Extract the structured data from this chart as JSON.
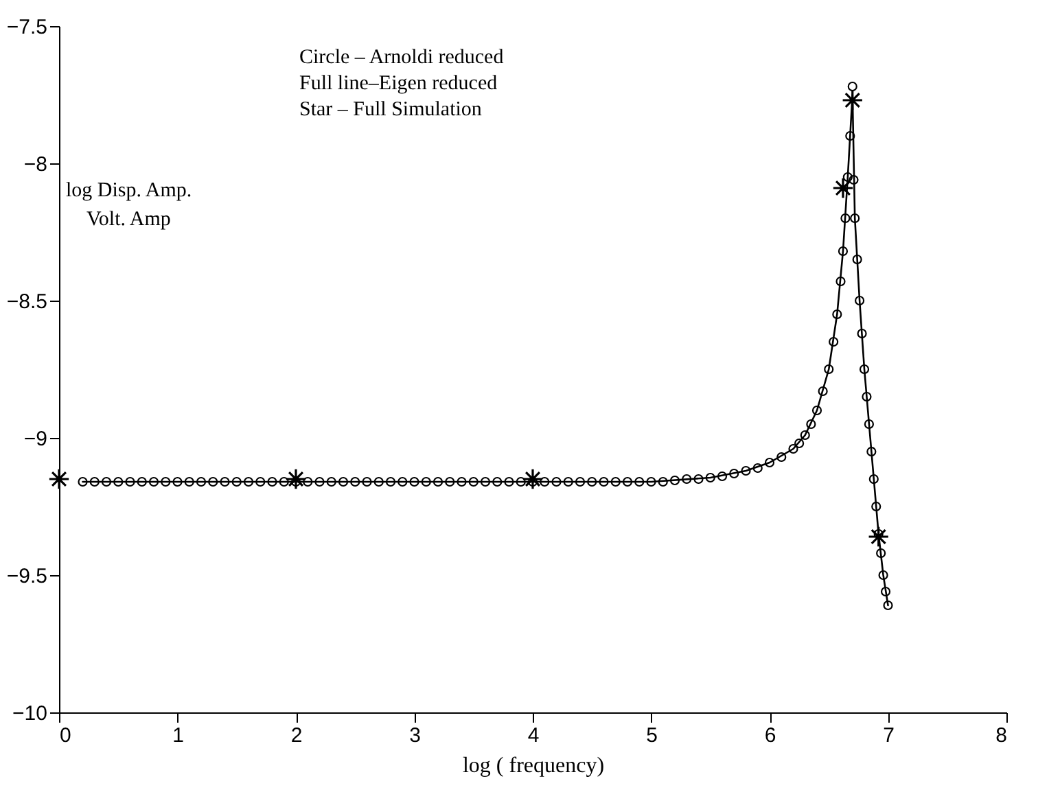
{
  "chart_data": {
    "type": "scatter",
    "xlabel": "log ( frequency)",
    "ylabel": "log Disp. Amp.\nVolt. Amp",
    "annotations": [
      "Circle – Arnoldi reduced",
      "Full line–Eigen reduced",
      "Star      – Full Simulation"
    ],
    "xlim": [
      0,
      8
    ],
    "xticks": [
      0,
      1,
      2,
      3,
      4,
      5,
      6,
      7,
      8
    ],
    "ylim": [
      -10,
      -7.5
    ],
    "yticks": [
      -10,
      -9.5,
      -9,
      -8.5,
      -8,
      -7.5
    ],
    "grid": false,
    "series": [
      {
        "marker": "circle",
        "color": "#000000",
        "x": [
          0.2,
          0.3,
          0.4,
          0.5,
          0.6,
          0.7,
          0.8,
          0.9,
          1.0,
          1.1,
          1.2,
          1.3,
          1.4,
          1.5,
          1.6,
          1.7,
          1.8,
          1.9,
          2.0,
          2.1,
          2.2,
          2.3,
          2.4,
          2.5,
          2.6,
          2.7,
          2.8,
          2.9,
          3.0,
          3.1,
          3.2,
          3.3,
          3.4,
          3.5,
          3.6,
          3.7,
          3.8,
          3.9,
          4.0,
          4.1,
          4.2,
          4.3,
          4.4,
          4.5,
          4.6,
          4.7,
          4.8,
          4.9,
          5.0,
          5.1,
          5.2,
          5.3,
          5.4,
          5.5,
          5.6,
          5.7,
          5.8,
          5.9,
          6.0,
          6.1,
          6.2,
          6.25,
          6.3,
          6.35,
          6.4,
          6.45,
          6.5,
          6.54,
          6.57,
          6.6,
          6.62,
          6.64,
          6.66,
          6.68,
          6.7,
          6.71,
          6.72,
          6.74,
          6.76,
          6.78,
          6.8,
          6.82,
          6.84,
          6.86,
          6.88,
          6.9,
          6.92,
          6.94,
          6.96,
          6.98,
          7.0
        ],
        "values": [
          -9.16,
          -9.16,
          -9.16,
          -9.16,
          -9.16,
          -9.16,
          -9.16,
          -9.16,
          -9.16,
          -9.16,
          -9.16,
          -9.16,
          -9.16,
          -9.16,
          -9.16,
          -9.16,
          -9.16,
          -9.16,
          -9.16,
          -9.16,
          -9.16,
          -9.16,
          -9.16,
          -9.16,
          -9.16,
          -9.16,
          -9.16,
          -9.16,
          -9.16,
          -9.16,
          -9.16,
          -9.16,
          -9.16,
          -9.16,
          -9.16,
          -9.16,
          -9.16,
          -9.16,
          -9.16,
          -9.16,
          -9.16,
          -9.16,
          -9.16,
          -9.16,
          -9.16,
          -9.16,
          -9.16,
          -9.16,
          -9.16,
          -9.16,
          -9.155,
          -9.15,
          -9.15,
          -9.145,
          -9.14,
          -9.13,
          -9.12,
          -9.11,
          -9.09,
          -9.07,
          -9.04,
          -9.02,
          -8.99,
          -8.95,
          -8.9,
          -8.83,
          -8.75,
          -8.65,
          -8.55,
          -8.43,
          -8.32,
          -8.2,
          -8.05,
          -7.9,
          -7.72,
          -8.06,
          -8.2,
          -8.35,
          -8.5,
          -8.62,
          -8.75,
          -8.85,
          -8.95,
          -9.05,
          -9.15,
          -9.25,
          -9.35,
          -9.42,
          -9.5,
          -9.56,
          -9.61
        ]
      },
      {
        "type": "line",
        "line_style": "solid",
        "color": "#000000",
        "x": [
          0.2,
          5.0,
          5.5,
          5.8,
          6.0,
          6.2,
          6.3,
          6.4,
          6.5,
          6.57,
          6.62,
          6.66,
          6.7,
          6.72,
          6.76,
          6.8,
          6.84,
          6.88,
          6.92,
          6.96,
          7.0
        ],
        "values": [
          -9.16,
          -9.16,
          -9.145,
          -9.12,
          -9.09,
          -9.04,
          -8.99,
          -8.9,
          -8.75,
          -8.55,
          -8.32,
          -8.05,
          -7.75,
          -8.2,
          -8.5,
          -8.75,
          -8.95,
          -9.15,
          -9.35,
          -9.5,
          -9.61
        ]
      },
      {
        "type": "scatter",
        "marker": "cross",
        "color": "#000000",
        "x": [
          0,
          2,
          4,
          6.62,
          6.7,
          6.92
        ],
        "values": [
          -9.15,
          -9.15,
          -9.15,
          -8.09,
          -7.77,
          -9.36
        ]
      }
    ]
  }
}
